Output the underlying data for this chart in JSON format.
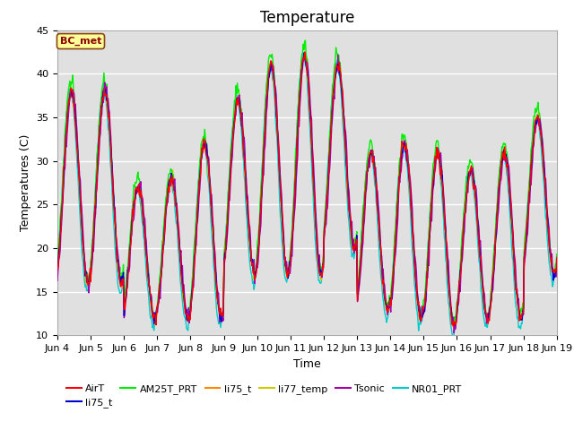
{
  "title": "Temperature",
  "xlabel": "Time",
  "ylabel": "Temperatures (C)",
  "ylim": [
    10,
    45
  ],
  "annotation": "BC_met",
  "legend_labels": [
    "AirT",
    "li75_t",
    "AM25T_PRT",
    "li75_t",
    "li77_temp",
    "Tsonic",
    "NR01_PRT"
  ],
  "legend_colors": [
    "#ff0000",
    "#0000cc",
    "#00ee00",
    "#ff8800",
    "#cccc00",
    "#aa00aa",
    "#00cccc"
  ],
  "x_tick_labels": [
    "Jun 4",
    "Jun 5",
    "Jun 6",
    "Jun 7",
    "Jun 8",
    "Jun 9",
    "Jun 10",
    "Jun 11",
    "Jun 12",
    "Jun 13",
    "Jun 14",
    "Jun 15",
    "Jun 16",
    "Jun 17",
    "Jun 18",
    "Jun 19"
  ],
  "day_peaks": [
    38,
    38,
    27,
    28,
    32,
    37,
    41,
    42,
    41,
    31,
    32,
    31,
    29,
    31,
    35
  ],
  "day_troughs": [
    16,
    16,
    12,
    12,
    12,
    17,
    17,
    17,
    20,
    13,
    12,
    11,
    12,
    12,
    17
  ],
  "bg_color": "#e0e0e0",
  "fig_color": "#ffffff",
  "grid_color": "#ffffff",
  "title_fontsize": 12,
  "label_fontsize": 9,
  "tick_fontsize": 8
}
